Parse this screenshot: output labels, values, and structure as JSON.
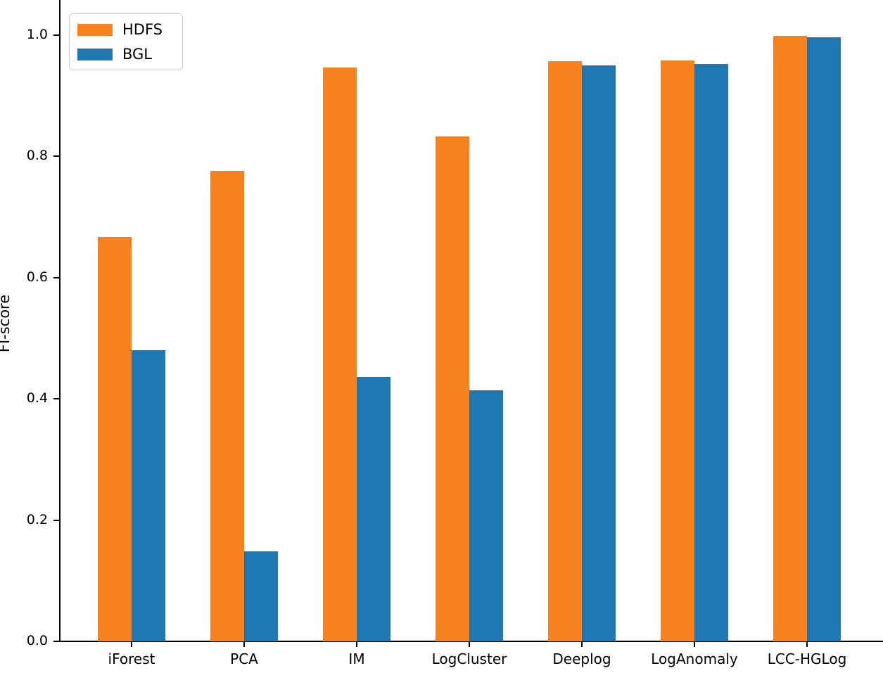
{
  "figure": {
    "title": "",
    "background": "#ffffff",
    "axis_color": "#000000"
  },
  "chart_data": {
    "type": "bar",
    "title": "",
    "xlabel": "",
    "ylabel": "FI-score",
    "categories": [
      "iForest",
      "PCA",
      "IM",
      "LogCluster",
      "Deeplog",
      "LogAnomaly",
      "LCC-HGLog"
    ],
    "series": [
      {
        "name": "HDFS",
        "color": "#f5821f",
        "values": [
          0.667,
          0.776,
          0.947,
          0.833,
          0.957,
          0.958,
          0.999
        ]
      },
      {
        "name": "BGL",
        "color": "#1f77b4",
        "values": [
          0.48,
          0.148,
          0.436,
          0.414,
          0.95,
          0.953,
          0.997
        ]
      }
    ],
    "ylim": [
      0.0,
      1.05
    ],
    "yticks": [
      "0.0",
      "0.2",
      "0.4",
      "0.6",
      "0.8",
      "1.0"
    ],
    "ytick_values": [
      0.0,
      0.2,
      0.4,
      0.6,
      0.8,
      1.0
    ],
    "grid": false,
    "legend_position": "upper left",
    "legend_entries": [
      "HDFS",
      "BGL"
    ]
  }
}
